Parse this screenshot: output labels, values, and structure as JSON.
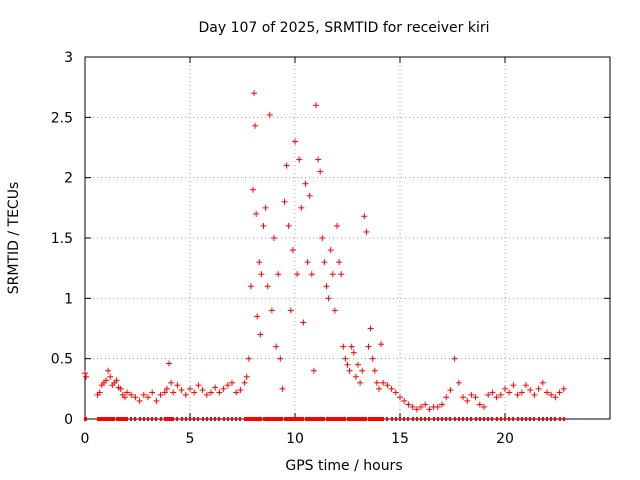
{
  "chart_data": {
    "type": "scatter",
    "title": "Day 107 of 2025, SRMTID for receiver kiri",
    "xlabel": "GPS time / hours",
    "ylabel": "SRMTID / TECUs",
    "xlim": [
      0,
      25
    ],
    "ylim": [
      0,
      3
    ],
    "xticks": [
      0,
      5,
      10,
      15,
      20
    ],
    "xtick_labels": [
      "0",
      "5",
      "10",
      "15",
      "20"
    ],
    "yticks": [
      0,
      0.5,
      1,
      1.5,
      2,
      2.5,
      3
    ],
    "ytick_labels": [
      "0",
      "0.5",
      "1",
      "1.5",
      "2",
      "2.5",
      "3"
    ],
    "grid": true,
    "legend": "none",
    "marker": "+",
    "series_color": "#ff0000",
    "series": [
      {
        "name": "SRMTID",
        "x": [
          0.0,
          0.05,
          0.6,
          0.7,
          0.8,
          0.9,
          1.0,
          1.1,
          1.2,
          1.3,
          1.4,
          1.5,
          1.6,
          1.7,
          1.8,
          1.9,
          2.0,
          2.2,
          2.4,
          2.6,
          2.8,
          3.0,
          3.2,
          3.4,
          3.6,
          3.8,
          3.9,
          4.0,
          4.1,
          4.2,
          4.4,
          4.6,
          4.8,
          5.0,
          5.2,
          5.4,
          5.6,
          5.8,
          6.0,
          6.2,
          6.4,
          6.6,
          6.8,
          7.0,
          7.2,
          7.4,
          7.6,
          7.7,
          7.8,
          7.9,
          8.0,
          8.05,
          8.1,
          8.15,
          8.2,
          8.3,
          8.35,
          8.4,
          8.5,
          8.6,
          8.7,
          8.8,
          8.9,
          9.0,
          9.1,
          9.2,
          9.3,
          9.4,
          9.5,
          9.6,
          9.7,
          9.8,
          9.9,
          10.0,
          10.1,
          10.2,
          10.3,
          10.4,
          10.5,
          10.6,
          10.7,
          10.8,
          10.9,
          11.0,
          11.1,
          11.2,
          11.3,
          11.4,
          11.5,
          11.6,
          11.7,
          11.8,
          11.9,
          12.0,
          12.1,
          12.2,
          12.3,
          12.4,
          12.5,
          12.6,
          12.7,
          12.8,
          12.9,
          13.0,
          13.1,
          13.2,
          13.3,
          13.4,
          13.5,
          13.6,
          13.7,
          13.8,
          13.9,
          14.0,
          14.1,
          14.2,
          14.4,
          14.6,
          14.8,
          15.0,
          15.2,
          15.4,
          15.6,
          15.8,
          16.0,
          16.2,
          16.4,
          16.6,
          16.8,
          17.0,
          17.2,
          17.4,
          17.6,
          17.8,
          18.0,
          18.2,
          18.4,
          18.6,
          18.8,
          19.0,
          19.2,
          19.4,
          19.6,
          19.8,
          20.0,
          20.2,
          20.4,
          20.6,
          20.8,
          21.0,
          21.2,
          21.4,
          21.6,
          21.8,
          22.0,
          22.2,
          22.4,
          22.6,
          22.8
        ],
        "y": [
          0.38,
          0.35,
          0.2,
          0.22,
          0.28,
          0.3,
          0.32,
          0.4,
          0.35,
          0.28,
          0.3,
          0.32,
          0.26,
          0.25,
          0.2,
          0.18,
          0.22,
          0.2,
          0.18,
          0.15,
          0.2,
          0.18,
          0.22,
          0.15,
          0.2,
          0.22,
          0.25,
          0.46,
          0.3,
          0.22,
          0.28,
          0.24,
          0.2,
          0.25,
          0.22,
          0.28,
          0.24,
          0.2,
          0.22,
          0.26,
          0.22,
          0.25,
          0.28,
          0.3,
          0.22,
          0.24,
          0.3,
          0.35,
          0.5,
          1.1,
          1.9,
          2.7,
          2.43,
          1.7,
          0.85,
          1.3,
          0.7,
          1.2,
          1.6,
          1.75,
          1.1,
          2.52,
          0.9,
          1.5,
          0.6,
          1.2,
          0.5,
          0.25,
          1.8,
          2.1,
          1.6,
          0.9,
          1.4,
          2.3,
          1.2,
          2.15,
          1.75,
          0.8,
          1.95,
          1.3,
          1.85,
          1.2,
          0.4,
          2.6,
          2.15,
          2.05,
          1.5,
          1.3,
          1.1,
          1.0,
          1.4,
          1.2,
          0.9,
          1.6,
          1.3,
          1.2,
          0.6,
          0.5,
          0.45,
          0.4,
          0.6,
          0.55,
          0.35,
          0.45,
          0.3,
          0.4,
          1.68,
          1.55,
          0.6,
          0.75,
          0.5,
          0.4,
          0.3,
          0.25,
          0.62,
          0.3,
          0.28,
          0.25,
          0.22,
          0.18,
          0.15,
          0.12,
          0.1,
          0.08,
          0.1,
          0.12,
          0.08,
          0.1,
          0.1,
          0.12,
          0.18,
          0.24,
          0.5,
          0.3,
          0.18,
          0.15,
          0.2,
          0.18,
          0.12,
          0.1,
          0.2,
          0.22,
          0.18,
          0.2,
          0.25,
          0.22,
          0.28,
          0.2,
          0.22,
          0.28,
          0.24,
          0.2,
          0.25,
          0.3,
          0.22,
          0.2,
          0.18,
          0.22,
          0.25
        ]
      }
    ]
  }
}
